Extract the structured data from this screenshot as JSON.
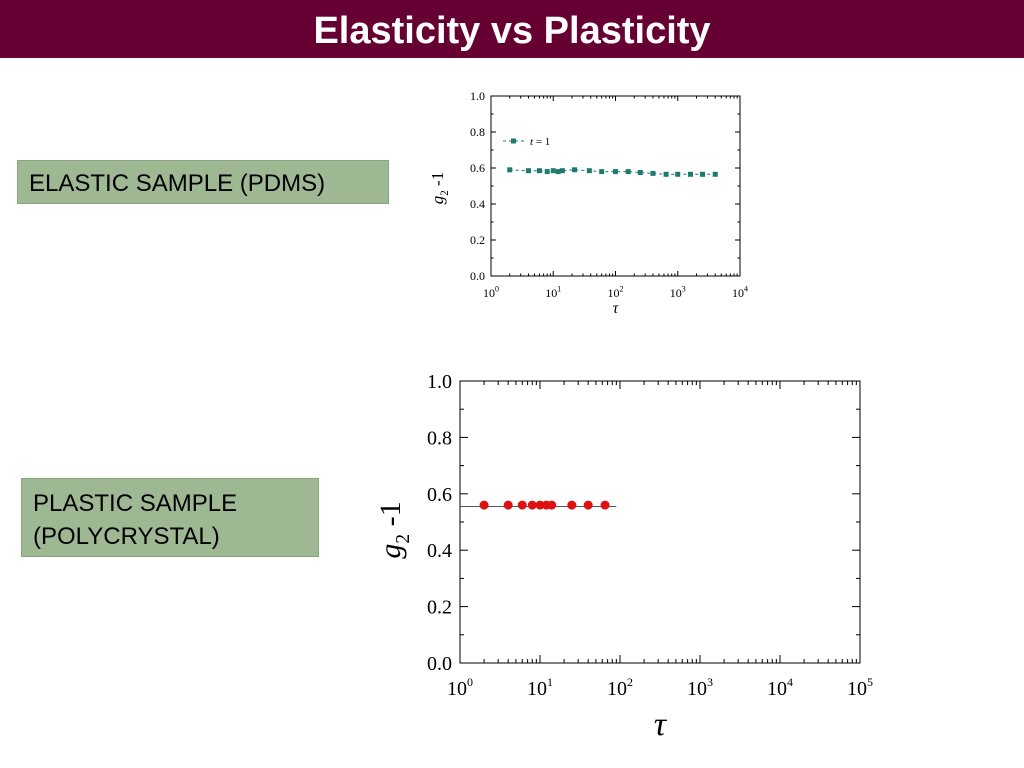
{
  "slide": {
    "title": "Elasticity vs Plasticity"
  },
  "labels": {
    "elastic": "ELASTIC SAMPLE (PDMS)",
    "plastic_line1": "PLASTIC SAMPLE",
    "plastic_line2": "(POLYCRYSTAL)"
  },
  "colors": {
    "title_bar": "#660033",
    "label_box": "#9fb894",
    "elastic_series": "#1f7a6e",
    "plastic_series": "#dd1111"
  },
  "chart_data": [
    {
      "type": "scatter",
      "xscale": "log",
      "xlim": [
        1,
        10000
      ],
      "ylim": [
        0,
        1.0
      ],
      "ylabel_main": "g",
      "ylabel_sub": "2",
      "ylabel_rest": "-1",
      "xlabel": "τ",
      "yticks": [
        "0.0",
        "0.2",
        "0.4",
        "0.6",
        "0.8",
        "1.0"
      ],
      "xticks": [
        {
          "base": "10",
          "exp": "0"
        },
        {
          "base": "10",
          "exp": "1"
        },
        {
          "base": "10",
          "exp": "2"
        },
        {
          "base": "10",
          "exp": "3"
        },
        {
          "base": "10",
          "exp": "4"
        }
      ],
      "legend": {
        "position": "upper-left",
        "var": "t",
        "rest": " = 1"
      },
      "series": [
        {
          "marker": "square",
          "x": [
            2,
            4,
            6,
            8,
            10,
            12,
            14,
            22,
            38,
            60,
            100,
            160,
            250,
            400,
            650,
            1000,
            1600,
            2500,
            4000
          ],
          "y": [
            0.59,
            0.585,
            0.585,
            0.58,
            0.585,
            0.58,
            0.585,
            0.59,
            0.585,
            0.58,
            0.58,
            0.58,
            0.575,
            0.57,
            0.565,
            0.565,
            0.565,
            0.565,
            0.565
          ]
        }
      ]
    },
    {
      "type": "scatter",
      "xscale": "log",
      "xlim": [
        1,
        100000
      ],
      "ylim": [
        0,
        1.0
      ],
      "ylabel_main": "g",
      "ylabel_sub": "2",
      "ylabel_rest": "-1",
      "xlabel": "τ",
      "yticks": [
        "0.0",
        "0.2",
        "0.4",
        "0.6",
        "0.8",
        "1.0"
      ],
      "xticks": [
        {
          "base": "10",
          "exp": "0"
        },
        {
          "base": "10",
          "exp": "1"
        },
        {
          "base": "10",
          "exp": "2"
        },
        {
          "base": "10",
          "exp": "3"
        },
        {
          "base": "10",
          "exp": "4"
        },
        {
          "base": "10",
          "exp": "5"
        }
      ],
      "fit_line_y": 0.555,
      "series": [
        {
          "marker": "circle",
          "x": [
            2,
            4,
            6,
            8,
            10,
            12,
            14,
            25,
            40,
            65
          ],
          "y": [
            0.56,
            0.56,
            0.56,
            0.56,
            0.56,
            0.56,
            0.56,
            0.56,
            0.56,
            0.56
          ]
        }
      ]
    }
  ]
}
